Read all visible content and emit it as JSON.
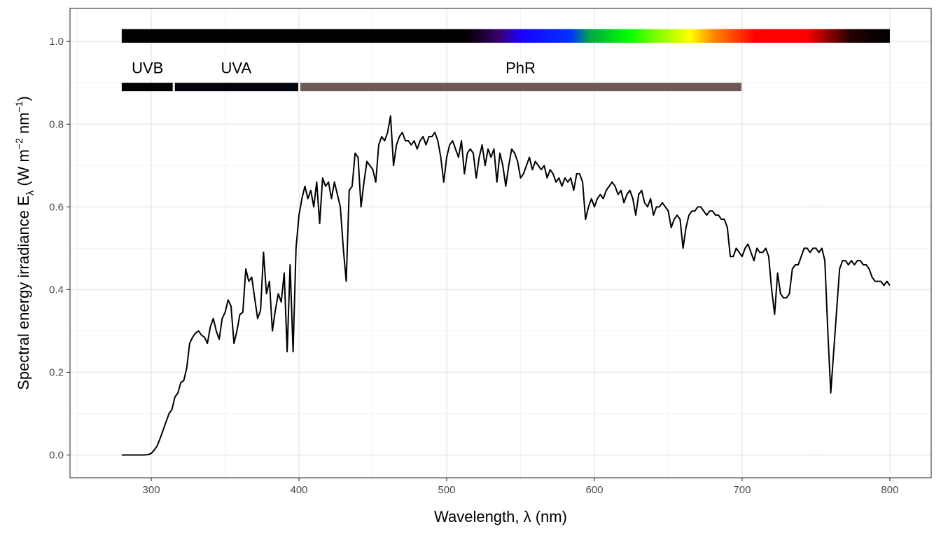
{
  "chart_data": {
    "type": "line",
    "xlabel": "Wavelength, λ (nm)",
    "ylabel": {
      "prefix": "Spectral  energy  irradiance  E",
      "subscript": "λ",
      "units_open": "  (W m",
      "units_exp1": "−2",
      "units_mid": " nm",
      "units_exp2": "−1",
      "units_close": ")"
    },
    "xlim": [
      245,
      828
    ],
    "ylim": [
      -0.055,
      1.08
    ],
    "x_ticks": [
      300,
      400,
      500,
      600,
      700,
      800
    ],
    "y_ticks": [
      0.0,
      0.2,
      0.4,
      0.6,
      0.8,
      1.0
    ],
    "y_tick_labels": [
      "0.0",
      "0.2",
      "0.4",
      "0.6",
      "0.8",
      "1.0"
    ],
    "grid": true,
    "series": [
      {
        "color": "#000000",
        "x": [
          280,
          290,
          295,
          298,
          300,
          302,
          304,
          306,
          308,
          310,
          312,
          314,
          316,
          318,
          320,
          322,
          324,
          326,
          328,
          330,
          332,
          334,
          336,
          338,
          340,
          342,
          344,
          346,
          348,
          350,
          352,
          354,
          356,
          358,
          360,
          362,
          364,
          366,
          368,
          370,
          372,
          374,
          376,
          378,
          380,
          382,
          384,
          386,
          388,
          390,
          392,
          394,
          396,
          398,
          400,
          402,
          404,
          406,
          408,
          410,
          412,
          414,
          416,
          418,
          420,
          422,
          424,
          426,
          428,
          430,
          432,
          434,
          436,
          438,
          440,
          442,
          444,
          446,
          448,
          450,
          452,
          454,
          456,
          458,
          460,
          462,
          464,
          466,
          468,
          470,
          472,
          474,
          476,
          478,
          480,
          482,
          484,
          486,
          488,
          490,
          492,
          494,
          496,
          498,
          500,
          502,
          504,
          506,
          508,
          510,
          512,
          514,
          516,
          518,
          520,
          522,
          524,
          526,
          528,
          530,
          532,
          534,
          536,
          538,
          540,
          542,
          544,
          546,
          548,
          550,
          552,
          554,
          556,
          558,
          560,
          562,
          564,
          566,
          568,
          570,
          572,
          574,
          576,
          578,
          580,
          582,
          584,
          586,
          588,
          590,
          592,
          594,
          596,
          598,
          600,
          602,
          604,
          606,
          608,
          610,
          612,
          614,
          616,
          618,
          620,
          622,
          624,
          626,
          628,
          630,
          632,
          634,
          636,
          638,
          640,
          642,
          644,
          646,
          648,
          650,
          652,
          654,
          656,
          658,
          660,
          662,
          664,
          666,
          668,
          670,
          672,
          674,
          676,
          678,
          680,
          682,
          684,
          686,
          688,
          690,
          692,
          694,
          696,
          698,
          700,
          702,
          704,
          706,
          708,
          710,
          712,
          714,
          716,
          718,
          720,
          722,
          724,
          726,
          728,
          730,
          732,
          734,
          736,
          738,
          740,
          742,
          744,
          746,
          748,
          750,
          752,
          754,
          756,
          758,
          760,
          761,
          762,
          764,
          766,
          768,
          770,
          772,
          774,
          776,
          778,
          780,
          782,
          784,
          786,
          788,
          790,
          792,
          794,
          796,
          798,
          800
        ],
        "y": [
          0.0,
          0.0,
          0.0,
          0.001,
          0.004,
          0.012,
          0.022,
          0.04,
          0.06,
          0.08,
          0.1,
          0.11,
          0.14,
          0.15,
          0.175,
          0.18,
          0.21,
          0.27,
          0.285,
          0.295,
          0.3,
          0.29,
          0.285,
          0.27,
          0.31,
          0.33,
          0.3,
          0.28,
          0.33,
          0.345,
          0.375,
          0.36,
          0.27,
          0.3,
          0.34,
          0.345,
          0.45,
          0.42,
          0.43,
          0.38,
          0.33,
          0.35,
          0.49,
          0.39,
          0.42,
          0.3,
          0.35,
          0.39,
          0.37,
          0.44,
          0.25,
          0.46,
          0.25,
          0.5,
          0.58,
          0.62,
          0.65,
          0.62,
          0.64,
          0.6,
          0.66,
          0.56,
          0.67,
          0.65,
          0.66,
          0.62,
          0.66,
          0.63,
          0.6,
          0.5,
          0.42,
          0.64,
          0.65,
          0.73,
          0.72,
          0.6,
          0.66,
          0.71,
          0.7,
          0.69,
          0.66,
          0.75,
          0.77,
          0.76,
          0.78,
          0.82,
          0.7,
          0.75,
          0.77,
          0.78,
          0.76,
          0.76,
          0.75,
          0.76,
          0.74,
          0.76,
          0.77,
          0.75,
          0.77,
          0.77,
          0.78,
          0.76,
          0.72,
          0.66,
          0.72,
          0.75,
          0.76,
          0.74,
          0.72,
          0.76,
          0.68,
          0.73,
          0.74,
          0.73,
          0.67,
          0.72,
          0.75,
          0.7,
          0.74,
          0.72,
          0.74,
          0.66,
          0.73,
          0.7,
          0.65,
          0.7,
          0.74,
          0.73,
          0.71,
          0.67,
          0.68,
          0.7,
          0.72,
          0.69,
          0.71,
          0.7,
          0.69,
          0.7,
          0.67,
          0.69,
          0.68,
          0.66,
          0.67,
          0.65,
          0.67,
          0.66,
          0.67,
          0.64,
          0.68,
          0.68,
          0.66,
          0.57,
          0.6,
          0.62,
          0.6,
          0.62,
          0.63,
          0.62,
          0.64,
          0.65,
          0.66,
          0.65,
          0.63,
          0.64,
          0.61,
          0.63,
          0.64,
          0.62,
          0.58,
          0.63,
          0.64,
          0.61,
          0.6,
          0.62,
          0.58,
          0.6,
          0.6,
          0.61,
          0.6,
          0.59,
          0.55,
          0.57,
          0.58,
          0.57,
          0.5,
          0.55,
          0.58,
          0.59,
          0.59,
          0.6,
          0.6,
          0.59,
          0.58,
          0.59,
          0.59,
          0.58,
          0.58,
          0.57,
          0.57,
          0.55,
          0.48,
          0.48,
          0.5,
          0.49,
          0.48,
          0.5,
          0.51,
          0.49,
          0.47,
          0.5,
          0.49,
          0.49,
          0.5,
          0.48,
          0.4,
          0.34,
          0.44,
          0.39,
          0.38,
          0.38,
          0.39,
          0.45,
          0.46,
          0.46,
          0.48,
          0.5,
          0.5,
          0.49,
          0.5,
          0.5,
          0.49,
          0.5,
          0.47,
          0.3,
          0.15,
          0.2,
          0.25,
          0.35,
          0.45,
          0.47,
          0.47,
          0.46,
          0.47,
          0.46,
          0.47,
          0.47,
          0.46,
          0.46,
          0.45,
          0.43,
          0.42,
          0.42,
          0.42,
          0.41,
          0.42,
          0.41
        ]
      }
    ],
    "annotations": {
      "spectrum_bar": {
        "y_top": 1.03,
        "y_bottom": 0.997,
        "x_start": 280,
        "x_end": 800,
        "stops": [
          {
            "at": 0.0,
            "color": "#000000"
          },
          {
            "at": 0.448,
            "color": "#000000"
          },
          {
            "at": 0.49,
            "color": "#3a0066"
          },
          {
            "at": 0.52,
            "color": "#1a00ff"
          },
          {
            "at": 0.585,
            "color": "#0033ff"
          },
          {
            "at": 0.61,
            "color": "#00aa44"
          },
          {
            "at": 0.66,
            "color": "#00ff00"
          },
          {
            "at": 0.71,
            "color": "#aaff00"
          },
          {
            "at": 0.74,
            "color": "#ffff00"
          },
          {
            "at": 0.77,
            "color": "#ff8800"
          },
          {
            "at": 0.825,
            "color": "#ff0000"
          },
          {
            "at": 0.89,
            "color": "#ff0000"
          },
          {
            "at": 0.95,
            "color": "#220000"
          },
          {
            "at": 1.0,
            "color": "#000000"
          }
        ]
      },
      "bands": [
        {
          "label": "UVB",
          "start": 280,
          "end": 315,
          "color": "#000000",
          "label_y": 0.935
        },
        {
          "label": "UVA",
          "start": 315,
          "end": 400,
          "color": "#05050f",
          "label_y": 0.935
        },
        {
          "label": "PhR",
          "start": 400,
          "end": 700,
          "color": "#6d5a55",
          "label_y": 0.935
        }
      ],
      "band_bar_y": 0.89
    }
  }
}
